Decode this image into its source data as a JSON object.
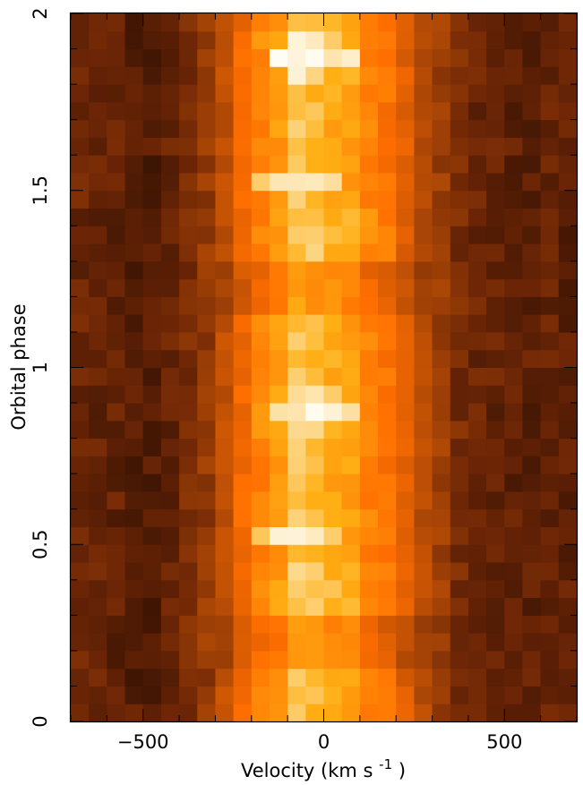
{
  "chart_data": {
    "type": "heatmap",
    "title": "",
    "xlabel": "Velocity (km s",
    "xlabel_exponent": "-1",
    "xlabel_suffix": ")",
    "ylabel": "Orbital phase",
    "xlim": [
      -700,
      700
    ],
    "ylim": [
      0,
      2
    ],
    "x_ticks": [
      -500,
      0,
      500
    ],
    "x_tick_labels": [
      "−500",
      "0",
      "500"
    ],
    "y_ticks": [
      0,
      0.5,
      1,
      1.5,
      2
    ],
    "y_tick_labels": [
      "0",
      "0.5",
      "1",
      "1.5",
      "2"
    ],
    "colormap": "black-brown-orange-white (intensity 0 to 1)",
    "n_velocity_bins": 28,
    "n_phase_bins": 40,
    "velocity_bin_width": 50,
    "phase_bin_width": 0.05,
    "grid": false,
    "legend": "none",
    "profile": {
      "description": "mean line profile vs velocity bin center (km/s)",
      "v": [
        -675,
        -625,
        -575,
        -525,
        -475,
        -425,
        -375,
        -325,
        -275,
        -225,
        -175,
        -125,
        -75,
        -25,
        25,
        75,
        125,
        175,
        225,
        275,
        325,
        375,
        425,
        475,
        525,
        575,
        625,
        675
      ],
      "intensity": [
        0.26,
        0.24,
        0.23,
        0.2,
        0.19,
        0.24,
        0.3,
        0.38,
        0.5,
        0.62,
        0.7,
        0.76,
        0.86,
        0.84,
        0.8,
        0.78,
        0.7,
        0.66,
        0.58,
        0.48,
        0.4,
        0.3,
        0.26,
        0.24,
        0.23,
        0.22,
        0.24,
        0.22
      ]
    },
    "features": [
      {
        "phase": 0.875,
        "v_range": [
          -150,
          100
        ],
        "peak": 1.0
      },
      {
        "phase": 0.525,
        "v_range": [
          -200,
          50
        ],
        "peak": 0.95
      },
      {
        "phase": 1.875,
        "v_range": [
          -150,
          100
        ],
        "peak": 1.0
      },
      {
        "phase": 1.525,
        "v_range": [
          -200,
          50
        ],
        "peak": 0.95
      }
    ]
  }
}
